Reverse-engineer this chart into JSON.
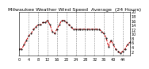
{
  "title": "Milwaukee Weather Wind Speed  Average  (24 Hours)",
  "line_color": "#cc0000",
  "dot_color": "#000000",
  "background_color": "#ffffff",
  "grid_color": "#888888",
  "ylim": [
    0,
    20
  ],
  "yticks": [
    2,
    4,
    6,
    8,
    10,
    12,
    14,
    16,
    18,
    20
  ],
  "x_values": [
    0,
    1,
    2,
    3,
    4,
    5,
    6,
    7,
    8,
    9,
    10,
    11,
    12,
    13,
    14,
    15,
    16,
    17,
    18,
    19,
    20,
    21,
    22,
    23,
    24,
    25,
    26,
    27,
    28,
    29,
    30,
    31,
    32,
    33,
    34,
    35,
    36,
    37,
    38,
    39,
    40,
    41,
    42,
    43,
    44,
    45,
    46,
    47
  ],
  "y_values": [
    3,
    3,
    5,
    7,
    9,
    10,
    12,
    13,
    14,
    14,
    15,
    15,
    16,
    14,
    11,
    10,
    12,
    14,
    16,
    16,
    15,
    14,
    13,
    12,
    12,
    12,
    12,
    12,
    12,
    12,
    12,
    12,
    12,
    12,
    12,
    11,
    10,
    8,
    4,
    7,
    5,
    3,
    2,
    1,
    2,
    3,
    5,
    6
  ],
  "vgrid_positions": [
    4,
    8,
    12,
    16,
    20,
    24,
    28,
    32,
    36,
    40,
    44
  ],
  "title_fontsize": 4.5,
  "tick_fontsize": 3.5
}
